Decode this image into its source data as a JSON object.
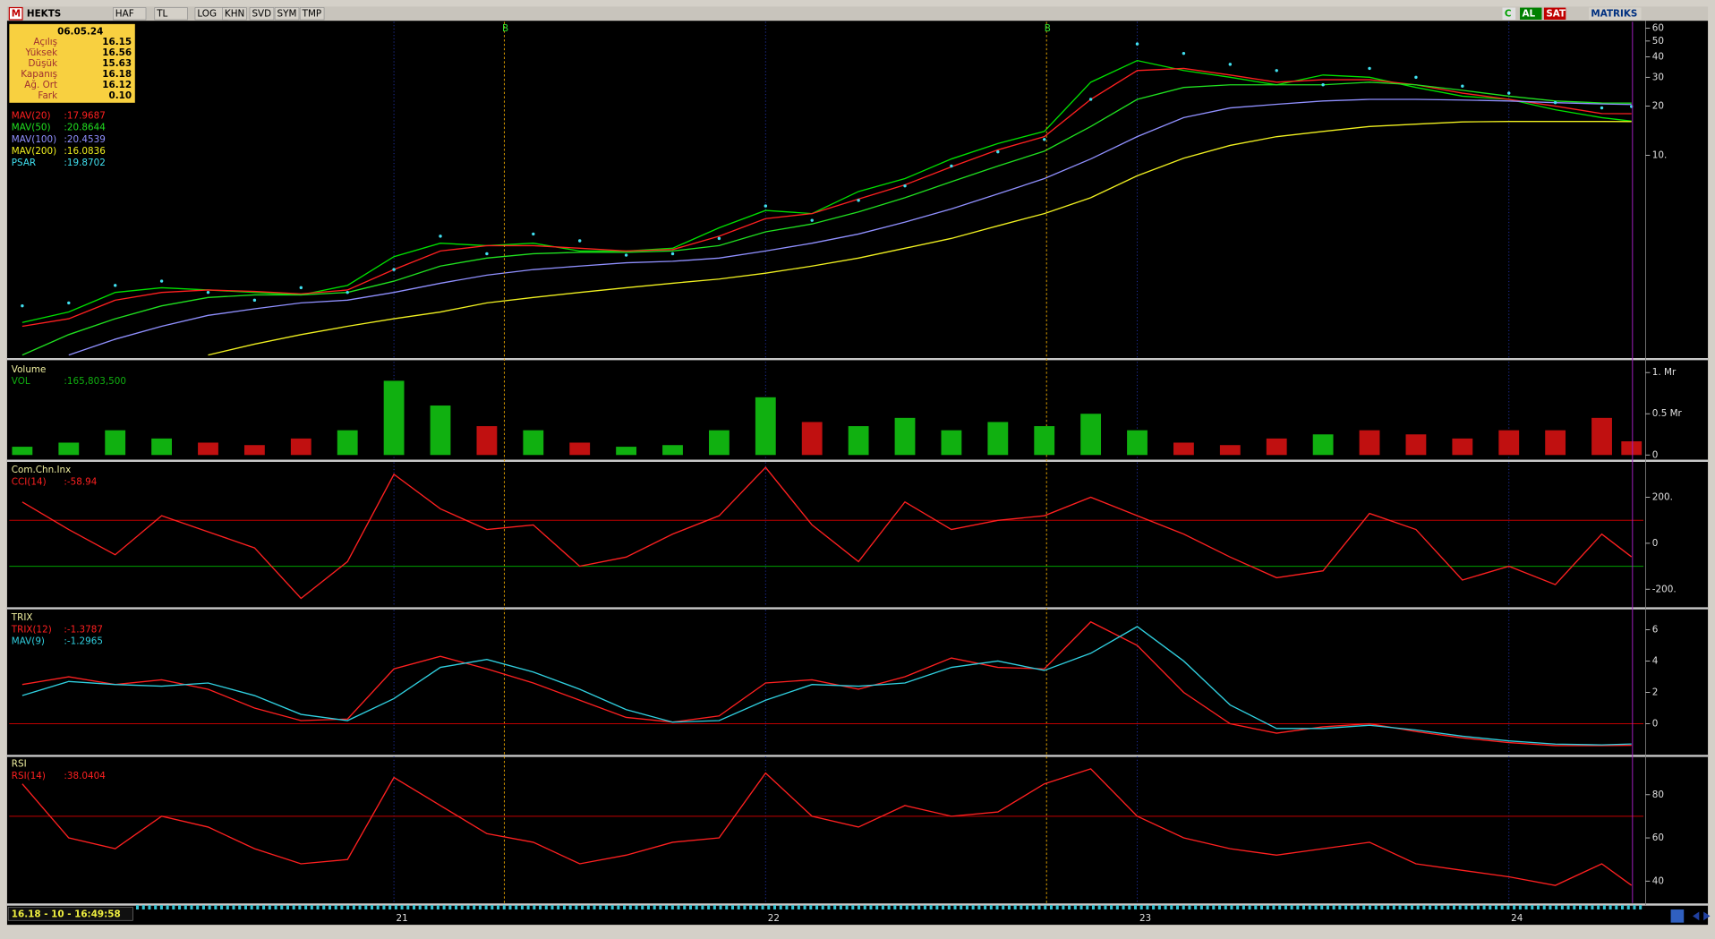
{
  "toolbar": {
    "logo": "M",
    "symbol": "HEKTS",
    "buttons": [
      "HAF",
      "TL",
      "LOG",
      "KHN",
      "SVD",
      "SYM",
      "TMP"
    ],
    "right_buttons": [
      "C",
      "AL",
      "SAT",
      "MATRIKS"
    ]
  },
  "info_box": {
    "date": "06.05.24",
    "rows": [
      [
        "Açılış",
        "16.15"
      ],
      [
        "Yüksek",
        "16.56"
      ],
      [
        "Düşük",
        "15.63"
      ],
      [
        "Kapanış",
        "16.18"
      ],
      [
        "Ağ. Ort",
        "16.12"
      ],
      [
        "Fark",
        "0.10"
      ]
    ]
  },
  "status": {
    "text": "16.18 - 10 - 16:49:58"
  },
  "chart_data": [
    {
      "type": "line",
      "log": true,
      "x": [
        20.0,
        20.125,
        20.25,
        20.375,
        20.5,
        20.625,
        20.75,
        20.875,
        21.0,
        21.125,
        21.25,
        21.375,
        21.5,
        21.625,
        21.75,
        21.875,
        22.0,
        22.125,
        22.25,
        22.375,
        22.5,
        22.625,
        22.75,
        22.875,
        23.0,
        23.125,
        23.25,
        23.375,
        23.5,
        23.625,
        23.75,
        23.875,
        24.0,
        24.125,
        24.25,
        24.33
      ],
      "xlim": [
        19.965,
        24.362
      ],
      "ylim": [
        0.58,
        65.5
      ],
      "yticks": [
        60,
        50,
        40,
        30,
        20,
        {
          "value": 10,
          "label": "10."
        }
      ],
      "markers": [
        {
          "x": 21.297,
          "label": "B"
        },
        {
          "x": 22.756,
          "label": "B"
        }
      ],
      "series": [
        {
          "color": "#00e000",
          "values": [
            0.95,
            1.1,
            1.45,
            1.55,
            1.5,
            1.45,
            1.4,
            1.6,
            2.4,
            2.9,
            2.8,
            2.9,
            2.6,
            2.6,
            2.7,
            3.6,
            4.6,
            4.4,
            6.0,
            7.2,
            9.5,
            11.8,
            14,
            28,
            38,
            33,
            30,
            27,
            31,
            30,
            26,
            23,
            22,
            19,
            17,
            16.18
          ]
        },
        {
          "name": "MAV(20)",
          "value_label": ":17.9687",
          "color": "#ff2020",
          "values": [
            0.9,
            1.0,
            1.3,
            1.45,
            1.5,
            1.47,
            1.42,
            1.5,
            2.0,
            2.6,
            2.8,
            2.8,
            2.7,
            2.6,
            2.65,
            3.2,
            4.1,
            4.4,
            5.4,
            6.6,
            8.5,
            10.8,
            13,
            22,
            33,
            34,
            31,
            28,
            29,
            29,
            27,
            24,
            22,
            20,
            18,
            17.9687
          ]
        },
        {
          "name": "MAV(50)",
          "value_label": ":20.8644",
          "color": "#20e020",
          "values": [
            0.6,
            0.8,
            1.0,
            1.2,
            1.35,
            1.4,
            1.4,
            1.45,
            1.7,
            2.1,
            2.35,
            2.5,
            2.55,
            2.55,
            2.6,
            2.8,
            3.4,
            3.8,
            4.5,
            5.5,
            6.9,
            8.6,
            10.6,
            15,
            22,
            26,
            27,
            27,
            27,
            28,
            27,
            25,
            23,
            21.5,
            20.9,
            20.8644
          ]
        },
        {
          "name": "MAV(100)",
          "value_label": ":20.4539",
          "color": "#9090ff",
          "values": [
            null,
            0.6,
            0.75,
            0.9,
            1.05,
            1.15,
            1.25,
            1.3,
            1.45,
            1.65,
            1.85,
            2.0,
            2.1,
            2.2,
            2.25,
            2.35,
            2.6,
            2.9,
            3.3,
            3.9,
            4.7,
            5.8,
            7.2,
            9.5,
            13,
            17,
            19.5,
            20.5,
            21.5,
            22,
            22,
            21.8,
            21.5,
            21,
            20.6,
            20.4539
          ]
        },
        {
          "name": "MAV(200)",
          "value_label": ":16.0836",
          "color": "#f0f020",
          "values": [
            null,
            null,
            null,
            null,
            0.6,
            0.7,
            0.8,
            0.9,
            1.0,
            1.1,
            1.25,
            1.35,
            1.45,
            1.55,
            1.65,
            1.75,
            1.9,
            2.1,
            2.35,
            2.7,
            3.1,
            3.7,
            4.4,
            5.5,
            7.5,
            9.6,
            11.5,
            13,
            14,
            15,
            15.5,
            16,
            16.1,
            16.1,
            16.1,
            16.0836
          ]
        },
        {
          "name": "PSAR",
          "value_label": ":19.8702",
          "color": "#40e0f0",
          "style": "dots",
          "values": [
            1.2,
            1.25,
            1.6,
            1.7,
            1.45,
            1.3,
            1.55,
            1.45,
            2.0,
            3.2,
            2.5,
            3.3,
            3.0,
            2.45,
            2.5,
            3.1,
            4.9,
            4.0,
            5.3,
            6.5,
            8.6,
            10.5,
            12.5,
            22,
            48,
            42,
            36,
            33,
            27,
            34,
            30,
            26.5,
            24,
            21,
            19.5,
            19.8702
          ]
        }
      ]
    },
    {
      "type": "bar",
      "title": "Volume",
      "x": [
        20.0,
        20.125,
        20.25,
        20.375,
        20.5,
        20.625,
        20.75,
        20.875,
        21.0,
        21.125,
        21.25,
        21.375,
        21.5,
        21.625,
        21.75,
        21.875,
        22.0,
        22.125,
        22.25,
        22.375,
        22.5,
        22.625,
        22.75,
        22.875,
        23.0,
        23.125,
        23.25,
        23.375,
        23.5,
        23.625,
        23.75,
        23.875,
        24.0,
        24.125,
        24.25,
        24.33
      ],
      "xlim": [
        19.965,
        24.362
      ],
      "ylim": [
        -0.05,
        1.13
      ],
      "yticks": [
        {
          "value": 1,
          "label": "1. Mr"
        },
        {
          "value": 0.5,
          "label": "0.5 Mr"
        },
        0
      ],
      "series": [
        {
          "name": "VOL",
          "value_label": ":165,803,500",
          "color": "#10b010",
          "down_color": "#c01010",
          "values": [
            0.1,
            0.15,
            0.3,
            0.2,
            0.15,
            0.12,
            0.2,
            0.3,
            0.9,
            0.6,
            0.35,
            0.3,
            0.15,
            0.1,
            0.12,
            0.3,
            0.7,
            0.4,
            0.35,
            0.45,
            0.3,
            0.4,
            0.35,
            0.5,
            0.3,
            0.15,
            0.12,
            0.2,
            0.25,
            0.3,
            0.25,
            0.2,
            0.3,
            0.3,
            0.45,
            0.1658035
          ]
        }
      ]
    },
    {
      "type": "line",
      "title": "Com.Chn.Inx",
      "x": [
        20.0,
        20.125,
        20.25,
        20.375,
        20.5,
        20.625,
        20.75,
        20.875,
        21.0,
        21.125,
        21.25,
        21.375,
        21.5,
        21.625,
        21.75,
        21.875,
        22.0,
        22.125,
        22.25,
        22.375,
        22.5,
        22.625,
        22.75,
        22.875,
        23.0,
        23.125,
        23.25,
        23.375,
        23.5,
        23.625,
        23.75,
        23.875,
        24.0,
        24.125,
        24.25,
        24.33
      ],
      "xlim": [
        19.965,
        24.362
      ],
      "ylim": [
        -276,
        352
      ],
      "yticks": [
        {
          "value": 200,
          "label": "200."
        },
        0,
        {
          "value": -200,
          "label": "-200."
        }
      ],
      "ref_lines": [
        {
          "value": 100,
          "color": "#c00000"
        },
        {
          "value": -100,
          "color": "#00a000"
        }
      ],
      "series": [
        {
          "name": "CCI(14)",
          "value_label": ":-58.94",
          "color": "#ff2020",
          "values": [
            180,
            60,
            -50,
            120,
            50,
            -20,
            -240,
            -80,
            300,
            150,
            60,
            80,
            -100,
            -60,
            40,
            120,
            330,
            80,
            -80,
            180,
            60,
            100,
            120,
            200,
            120,
            40,
            -60,
            -150,
            -120,
            130,
            60,
            -160,
            -100,
            -180,
            40,
            -58.94
          ]
        }
      ]
    },
    {
      "type": "line",
      "title": "TRIX",
      "x": [
        20.0,
        20.125,
        20.25,
        20.375,
        20.5,
        20.625,
        20.75,
        20.875,
        21.0,
        21.125,
        21.25,
        21.375,
        21.5,
        21.625,
        21.75,
        21.875,
        22.0,
        22.125,
        22.25,
        22.375,
        22.5,
        22.625,
        22.75,
        22.875,
        23.0,
        23.125,
        23.25,
        23.375,
        23.5,
        23.625,
        23.75,
        23.875,
        24.0,
        24.125,
        24.25,
        24.33
      ],
      "xlim": [
        19.965,
        24.362
      ],
      "ylim": [
        -1.95,
        7.26
      ],
      "yticks": [
        6,
        4,
        2,
        0
      ],
      "ref_lines": [
        {
          "value": 0,
          "color": "#c00000"
        }
      ],
      "series": [
        {
          "name": "TRIX(12)",
          "value_label": ":-1.3787",
          "color": "#ff2020",
          "values": [
            2.5,
            3.0,
            2.5,
            2.8,
            2.2,
            1.0,
            0.2,
            0.3,
            3.5,
            4.3,
            3.5,
            2.6,
            1.5,
            0.4,
            0.1,
            0.5,
            2.6,
            2.8,
            2.2,
            3.0,
            4.2,
            3.6,
            3.5,
            6.5,
            5.0,
            2.0,
            0,
            -0.6,
            -0.2,
            0,
            -0.5,
            -0.9,
            -1.2,
            -1.4,
            -1.4,
            -1.3787
          ]
        },
        {
          "name": "MAV(9)",
          "value_label": ":-1.2965",
          "color": "#30d0e0",
          "values": [
            1.8,
            2.7,
            2.5,
            2.4,
            2.6,
            1.8,
            0.6,
            0.2,
            1.6,
            3.6,
            4.1,
            3.3,
            2.2,
            0.9,
            0.1,
            0.2,
            1.5,
            2.5,
            2.4,
            2.6,
            3.6,
            4.0,
            3.4,
            4.5,
            6.2,
            4.0,
            1.2,
            -0.3,
            -0.3,
            -0.1,
            -0.4,
            -0.8,
            -1.1,
            -1.3,
            -1.35,
            -1.2965
          ]
        }
      ]
    },
    {
      "type": "line",
      "title": "RSI",
      "x": [
        20.0,
        20.125,
        20.25,
        20.375,
        20.5,
        20.625,
        20.75,
        20.875,
        21.0,
        21.125,
        21.25,
        21.375,
        21.5,
        21.625,
        21.75,
        21.875,
        22.0,
        22.125,
        22.25,
        22.375,
        22.5,
        22.625,
        22.75,
        22.875,
        23.0,
        23.125,
        23.25,
        23.375,
        23.5,
        23.625,
        23.75,
        23.875,
        24.0,
        24.125,
        24.25,
        24.33
      ],
      "xlim": [
        19.965,
        24.362
      ],
      "ylim": [
        29.9,
        97.7
      ],
      "xticks": [
        21,
        22,
        23,
        24
      ],
      "yticks": [
        80,
        60,
        40
      ],
      "ref_lines": [
        {
          "value": 70,
          "color": "#c00000"
        }
      ],
      "series": [
        {
          "name": "RSI(14)",
          "value_label": ":38.0404",
          "color": "#ff2020",
          "values": [
            85,
            60,
            55,
            70,
            65,
            55,
            48,
            50,
            88,
            75,
            62,
            58,
            48,
            52,
            58,
            60,
            90,
            70,
            65,
            75,
            70,
            72,
            85,
            92,
            70,
            60,
            55,
            52,
            55,
            58,
            48,
            45,
            42,
            38,
            48,
            38.0404
          ]
        }
      ]
    }
  ]
}
